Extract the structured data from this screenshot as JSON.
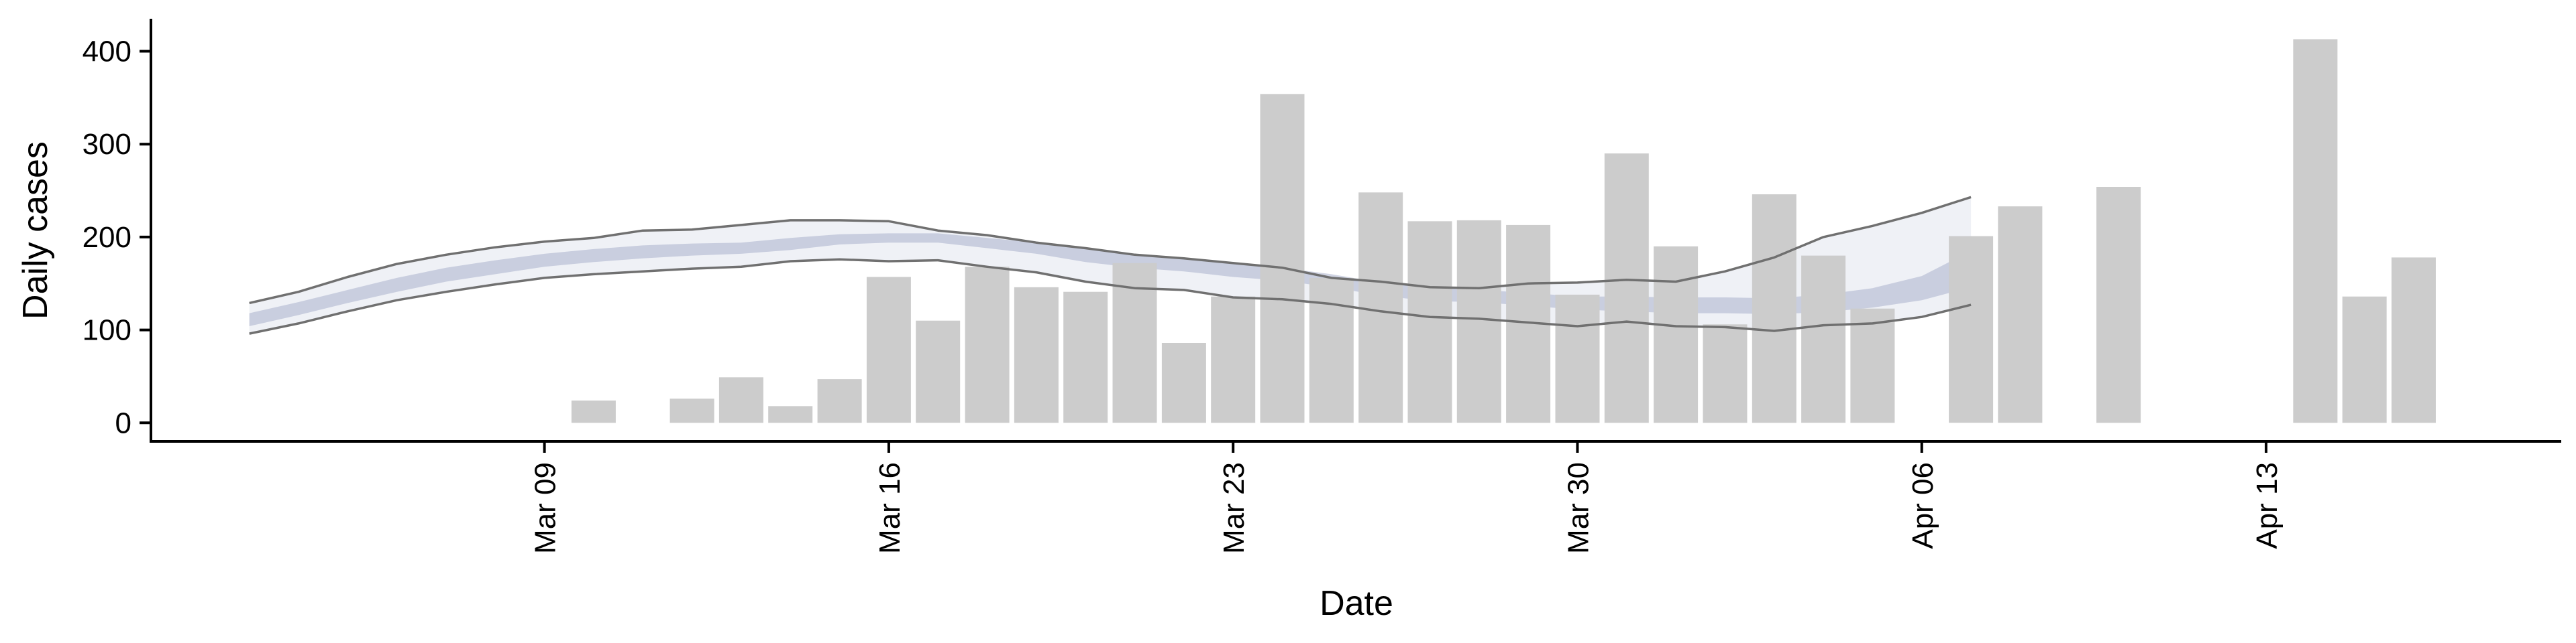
{
  "chart_data": {
    "type": "bar",
    "title": "",
    "xlabel": "Date",
    "ylabel": "Daily cases",
    "ylim": [
      -20,
      435
    ],
    "yticks": [
      0,
      100,
      200,
      300,
      400
    ],
    "xlim": [
      "2020-03-01",
      "2020-04-19"
    ],
    "xticks": [
      "2020-03-09",
      "2020-03-16",
      "2020-03-23",
      "2020-03-30",
      "2020-04-06",
      "2020-04-13"
    ],
    "xtick_labels": [
      "Mar 09",
      "Mar 16",
      "Mar 23",
      "Mar 30",
      "Apr 06",
      "Apr 13"
    ],
    "grid": false,
    "bar_color": "#cccccc",
    "band_color": "#a9b1cc",
    "line_color": "#707070",
    "bars": {
      "name": "",
      "dates": [
        "2020-03-10",
        "2020-03-12",
        "2020-03-13",
        "2020-03-14",
        "2020-03-15",
        "2020-03-16",
        "2020-03-17",
        "2020-03-18",
        "2020-03-19",
        "2020-03-20",
        "2020-03-21",
        "2020-03-22",
        "2020-03-23",
        "2020-03-24",
        "2020-03-25",
        "2020-03-26",
        "2020-03-27",
        "2020-03-28",
        "2020-03-29",
        "2020-03-30",
        "2020-03-31",
        "2020-04-01",
        "2020-04-02",
        "2020-04-03",
        "2020-04-04",
        "2020-04-05",
        "2020-04-07",
        "2020-04-08",
        "2020-04-10",
        "2020-04-14",
        "2020-04-15",
        "2020-04-16"
      ],
      "values": [
        24,
        26,
        49,
        18,
        47,
        157,
        110,
        168,
        146,
        141,
        172,
        86,
        136,
        354,
        156,
        248,
        217,
        218,
        213,
        138,
        290,
        190,
        106,
        246,
        180,
        123,
        201,
        233,
        254,
        413,
        136,
        178
      ]
    },
    "estimate": {
      "dates": [
        "2020-03-03",
        "2020-03-04",
        "2020-03-05",
        "2020-03-06",
        "2020-03-07",
        "2020-03-08",
        "2020-03-09",
        "2020-03-10",
        "2020-03-11",
        "2020-03-12",
        "2020-03-13",
        "2020-03-14",
        "2020-03-15",
        "2020-03-16",
        "2020-03-17",
        "2020-03-18",
        "2020-03-19",
        "2020-03-20",
        "2020-03-21",
        "2020-03-22",
        "2020-03-23",
        "2020-03-24",
        "2020-03-25",
        "2020-03-26",
        "2020-03-27",
        "2020-03-28",
        "2020-03-29",
        "2020-03-30",
        "2020-03-31",
        "2020-04-01",
        "2020-04-02",
        "2020-04-03",
        "2020-04-04",
        "2020-04-05",
        "2020-04-06",
        "2020-04-07"
      ],
      "outer_lower": [
        96,
        107,
        120,
        132,
        141,
        149,
        156,
        160,
        163,
        166,
        168,
        174,
        176,
        174,
        175,
        168,
        162,
        152,
        145,
        143,
        135,
        133,
        128,
        120,
        114,
        112,
        108,
        104,
        109,
        104,
        103,
        99,
        105,
        107,
        114,
        127
      ],
      "inner_lower": [
        104,
        116,
        129,
        141,
        152,
        160,
        168,
        173,
        177,
        180,
        182,
        186,
        192,
        194,
        194,
        188,
        182,
        173,
        167,
        163,
        157,
        153,
        146,
        137,
        131,
        130,
        126,
        122,
        120,
        118,
        118,
        117,
        119,
        124,
        132,
        146
      ],
      "inner_upper": [
        118,
        130,
        143,
        156,
        167,
        175,
        182,
        187,
        191,
        193,
        194,
        199,
        203,
        204,
        204,
        199,
        194,
        187,
        180,
        177,
        172,
        167,
        160,
        151,
        145,
        143,
        140,
        136,
        136,
        135,
        135,
        134,
        138,
        145,
        158,
        185
      ],
      "outer_upper": [
        129,
        141,
        157,
        171,
        181,
        189,
        195,
        199,
        207,
        208,
        213,
        218,
        218,
        217,
        207,
        202,
        194,
        188,
        181,
        177,
        172,
        167,
        156,
        152,
        146,
        145,
        150,
        151,
        154,
        152,
        163,
        178,
        200,
        212,
        226,
        243
      ]
    }
  }
}
